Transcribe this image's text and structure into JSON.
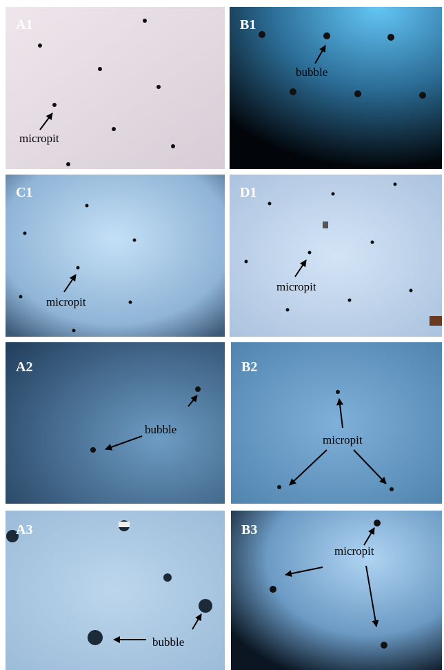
{
  "panels": [
    {
      "label": "A1",
      "annotations": [
        "micropit"
      ]
    },
    {
      "label": "B1",
      "annotations": [
        "bubble"
      ]
    },
    {
      "label": "C1",
      "annotations": [
        "micropit"
      ]
    },
    {
      "label": "D1",
      "annotations": [
        "micropit"
      ]
    },
    {
      "label": "A2",
      "annotations": [
        "bubble"
      ]
    },
    {
      "label": "B2",
      "annotations": [
        "micropit"
      ]
    },
    {
      "label": "A3",
      "annotations": [
        "bubble"
      ]
    },
    {
      "label": "B3",
      "annotations": [
        "micropit"
      ]
    }
  ]
}
